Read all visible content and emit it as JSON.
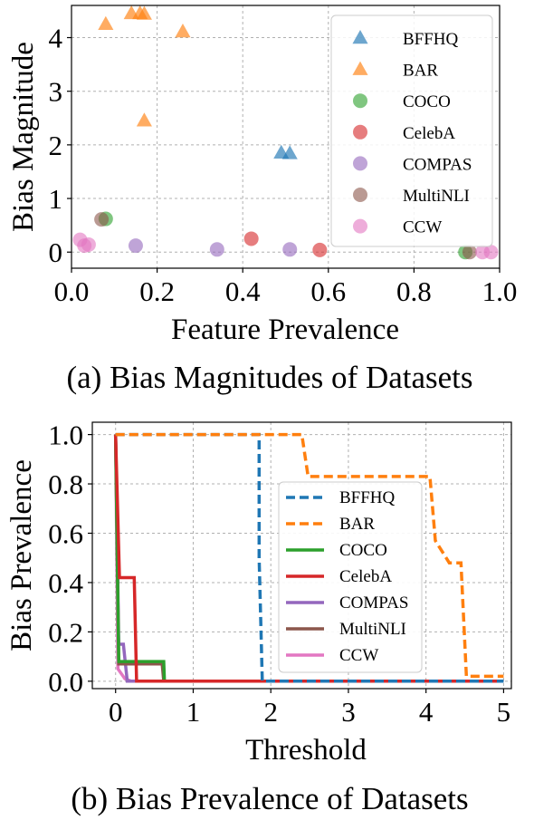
{
  "colors": {
    "BFFHQ": "#1f77b4",
    "BAR": "#ff7f0e",
    "COCO": "#2ca02c",
    "CelebA": "#d62728",
    "COMPAS": "#9467bd",
    "MultiNLI": "#8c564b",
    "CCW": "#e377c2"
  },
  "chart_data": [
    {
      "type": "scatter",
      "caption": "(a) Bias Magnitudes of Datasets",
      "xlabel": "Feature Prevalence",
      "ylabel": "Bias Magnitude",
      "xlim": [
        0.0,
        1.0
      ],
      "ylim": [
        -0.3,
        4.6
      ],
      "xticks": [
        "0.0",
        "0.2",
        "0.4",
        "0.6",
        "0.8",
        "1.0"
      ],
      "yticks": [
        "0",
        "1",
        "2",
        "3",
        "4"
      ],
      "grid": true,
      "legend_position": "upper-right",
      "series": [
        {
          "name": "BFFHQ",
          "marker": "triangle",
          "points": [
            [
              0.49,
              1.85
            ],
            [
              0.51,
              1.84
            ]
          ]
        },
        {
          "name": "BAR",
          "marker": "triangle",
          "points": [
            [
              0.08,
              4.25
            ],
            [
              0.14,
              4.45
            ],
            [
              0.16,
              4.45
            ],
            [
              0.17,
              4.44
            ],
            [
              0.26,
              4.11
            ],
            [
              0.17,
              2.45
            ]
          ]
        },
        {
          "name": "COCO",
          "marker": "circle",
          "points": [
            [
              0.08,
              0.62
            ],
            [
              0.92,
              0.0
            ]
          ]
        },
        {
          "name": "CelebA",
          "marker": "circle",
          "points": [
            [
              0.42,
              0.25
            ],
            [
              0.58,
              0.04
            ]
          ]
        },
        {
          "name": "COMPAS",
          "marker": "circle",
          "points": [
            [
              0.15,
              0.12
            ],
            [
              0.34,
              0.05
            ],
            [
              0.51,
              0.05
            ]
          ]
        },
        {
          "name": "MultiNLI",
          "marker": "circle",
          "points": [
            [
              0.07,
              0.61
            ],
            [
              0.93,
              0.0
            ]
          ]
        },
        {
          "name": "CCW",
          "marker": "circle",
          "points": [
            [
              0.02,
              0.23
            ],
            [
              0.03,
              0.12
            ],
            [
              0.04,
              0.14
            ],
            [
              0.96,
              0.0
            ],
            [
              0.98,
              0.0
            ]
          ]
        }
      ]
    },
    {
      "type": "line",
      "caption": "(b) Bias Prevalence of Datasets",
      "xlabel": "Threshold",
      "ylabel": "Bias Prevalence",
      "xlim": [
        -0.3,
        5.1
      ],
      "ylim": [
        -0.03,
        1.05
      ],
      "xticks": [
        "0",
        "1",
        "2",
        "3",
        "4",
        "5"
      ],
      "yticks": [
        "0.0",
        "0.2",
        "0.4",
        "0.6",
        "0.8",
        "1.0"
      ],
      "grid": true,
      "legend_position": "center-right",
      "series": [
        {
          "name": "BFFHQ",
          "style": "dashed",
          "points": [
            [
              0,
              1.0
            ],
            [
              1.85,
              1.0
            ],
            [
              1.85,
              0.5
            ],
            [
              1.89,
              0.0
            ],
            [
              5.0,
              0.0
            ]
          ]
        },
        {
          "name": "BAR",
          "style": "dashed",
          "points": [
            [
              0,
              1.0
            ],
            [
              2.4,
              1.0
            ],
            [
              2.48,
              0.83
            ],
            [
              4.05,
              0.83
            ],
            [
              4.12,
              0.57
            ],
            [
              4.3,
              0.48
            ],
            [
              4.45,
              0.48
            ],
            [
              4.52,
              0.02
            ],
            [
              5.0,
              0.02
            ]
          ]
        },
        {
          "name": "COCO",
          "style": "solid",
          "points": [
            [
              0,
              1.0
            ],
            [
              0.04,
              0.08
            ],
            [
              0.62,
              0.08
            ],
            [
              0.63,
              0.0
            ],
            [
              5.0,
              0.0
            ]
          ]
        },
        {
          "name": "CelebA",
          "style": "solid",
          "points": [
            [
              0,
              1.0
            ],
            [
              0.05,
              0.42
            ],
            [
              0.24,
              0.42
            ],
            [
              0.27,
              0.0
            ],
            [
              5.0,
              0.0
            ]
          ]
        },
        {
          "name": "COMPAS",
          "style": "solid",
          "points": [
            [
              0,
              1.0
            ],
            [
              0.04,
              0.15
            ],
            [
              0.1,
              0.15
            ],
            [
              0.15,
              0.0
            ],
            [
              5.0,
              0.0
            ]
          ]
        },
        {
          "name": "MultiNLI",
          "style": "solid",
          "points": [
            [
              0,
              1.0
            ],
            [
              0.04,
              0.07
            ],
            [
              0.6,
              0.07
            ],
            [
              0.62,
              0.0
            ],
            [
              5.0,
              0.0
            ]
          ]
        },
        {
          "name": "CCW",
          "style": "solid",
          "points": [
            [
              0,
              1.0
            ],
            [
              0.03,
              0.05
            ],
            [
              0.12,
              0.01
            ],
            [
              0.2,
              0.0
            ],
            [
              5.0,
              0.0
            ]
          ]
        }
      ]
    }
  ]
}
